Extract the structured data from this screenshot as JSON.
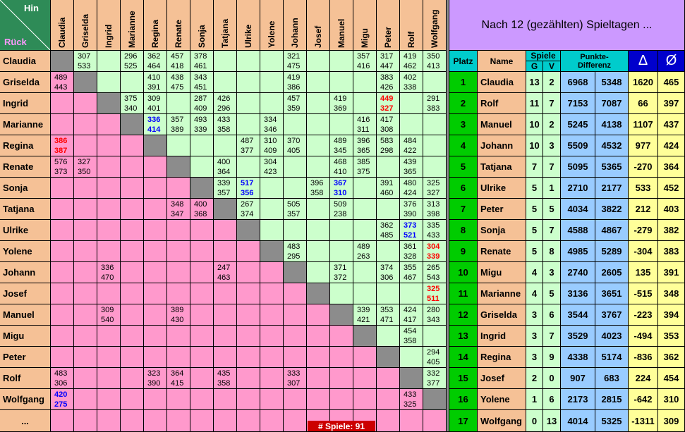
{
  "header": {
    "hin": "Hin",
    "rueck": "Rück",
    "title": "Nach 12 (gezählten) Spieltagen ..."
  },
  "players": [
    "Claudia",
    "Griselda",
    "Ingrid",
    "Marianne",
    "Regina",
    "Renate",
    "Sonja",
    "Tatjana",
    "Ulrike",
    "Yolene",
    "Johann",
    "Josef",
    "Manuel",
    "Migu",
    "Peter",
    "Rolf",
    "Wolfgang"
  ],
  "more_label": "...",
  "games_badge": "# Spiele:   91",
  "matrix": [
    [
      null,
      "307\n533",
      null,
      "296\n525",
      "362\n464",
      "457\n418",
      "378\n461",
      null,
      null,
      null,
      "321\n475",
      null,
      null,
      "357\n416",
      "317\n447",
      "419\n462",
      "350\n413"
    ],
    [
      "489\n443",
      null,
      null,
      null,
      "410\n391",
      "438\n475",
      "343\n451",
      null,
      null,
      null,
      "419\n386",
      null,
      null,
      null,
      "383\n426",
      "402\n338",
      null
    ],
    [
      null,
      null,
      null,
      "375\n340",
      "309\n401",
      null,
      "287\n409",
      "426\n296",
      null,
      null,
      "457\n359",
      null,
      "419\n369",
      null,
      "449\n327",
      null,
      "291\n383"
    ],
    [
      null,
      null,
      null,
      null,
      "336\n414",
      "357\n389",
      "493\n339",
      "433\n358",
      null,
      "334\n346",
      null,
      null,
      null,
      "416\n311",
      "417\n308",
      null,
      null
    ],
    [
      "386\n387",
      null,
      null,
      null,
      null,
      null,
      null,
      null,
      "487\n377",
      "310\n409",
      "370\n405",
      null,
      "489\n345",
      "396\n365",
      "583\n298",
      "484\n422",
      null
    ],
    [
      "576\n373",
      "327\n350",
      null,
      null,
      null,
      null,
      null,
      "400\n364",
      null,
      "304\n423",
      null,
      null,
      "468\n410",
      "385\n375",
      null,
      "439\n365",
      null
    ],
    [
      null,
      null,
      null,
      null,
      null,
      null,
      null,
      "339\n357",
      "517\n356",
      null,
      null,
      "396\n358",
      "367\n310",
      null,
      "391\n460",
      "480\n424",
      "325\n327"
    ],
    [
      null,
      null,
      null,
      null,
      null,
      "348\n347",
      "400\n368",
      null,
      "267\n374",
      null,
      "505\n357",
      null,
      "509\n238",
      null,
      null,
      "376\n390",
      "313\n398"
    ],
    [
      null,
      null,
      null,
      null,
      null,
      null,
      null,
      null,
      null,
      null,
      null,
      null,
      null,
      null,
      "362\n485",
      "373\n521",
      "335\n433"
    ],
    [
      null,
      null,
      null,
      null,
      null,
      null,
      null,
      null,
      null,
      null,
      "483\n295",
      null,
      null,
      "489\n263",
      null,
      "361\n328",
      "304\n339"
    ],
    [
      null,
      null,
      "336\n470",
      null,
      null,
      null,
      null,
      "247\n463",
      null,
      null,
      null,
      null,
      "371\n372",
      null,
      "374\n306",
      "355\n467",
      "265\n543"
    ],
    [
      null,
      null,
      null,
      null,
      null,
      null,
      null,
      null,
      null,
      null,
      null,
      null,
      null,
      null,
      null,
      null,
      "325\n511"
    ],
    [
      null,
      null,
      "309\n540",
      null,
      null,
      "389\n430",
      null,
      null,
      null,
      null,
      null,
      null,
      null,
      "339\n421",
      "353\n471",
      "424\n417",
      "280\n343"
    ],
    [
      null,
      null,
      null,
      null,
      null,
      null,
      null,
      null,
      null,
      null,
      null,
      null,
      null,
      null,
      null,
      "454\n358",
      null
    ],
    [
      null,
      null,
      null,
      null,
      null,
      null,
      null,
      null,
      null,
      null,
      null,
      null,
      null,
      null,
      null,
      null,
      "294\n405"
    ],
    [
      "483\n306",
      null,
      null,
      null,
      "323\n390",
      "364\n415",
      null,
      "435\n358",
      null,
      null,
      "333\n307",
      null,
      null,
      null,
      null,
      null,
      "332\n377"
    ],
    [
      "420\n275",
      null,
      null,
      null,
      null,
      null,
      null,
      null,
      null,
      null,
      null,
      null,
      null,
      null,
      null,
      "433\n325",
      null
    ]
  ],
  "highlight_colors": {
    "red": "#ff0000",
    "blue": "#0000ff"
  },
  "highlights": {
    "2-14": "red",
    "3-4": "blue",
    "4-0": "red",
    "6-8": "blue",
    "6-12": "blue",
    "8-15": "blue",
    "9-16": "red",
    "11-16": "red",
    "16-0": "blue"
  },
  "standings_header": {
    "platz": "Platz",
    "name": "Name",
    "spiele": "Spiele",
    "g": "G",
    "v": "V",
    "punkte": "Punkte-\nDifferenz",
    "delta": "Δ",
    "avg": "Ø"
  },
  "standings": [
    {
      "platz": "1",
      "name": "Claudia",
      "g": "13",
      "v": "2",
      "p1": "6968",
      "p2": "5348",
      "delta": "1620",
      "avg": "465"
    },
    {
      "platz": "2",
      "name": "Rolf",
      "g": "11",
      "v": "7",
      "p1": "7153",
      "p2": "7087",
      "delta": "66",
      "avg": "397"
    },
    {
      "platz": "3",
      "name": "Manuel",
      "g": "10",
      "v": "2",
      "p1": "5245",
      "p2": "4138",
      "delta": "1107",
      "avg": "437"
    },
    {
      "platz": "4",
      "name": "Johann",
      "g": "10",
      "v": "3",
      "p1": "5509",
      "p2": "4532",
      "delta": "977",
      "avg": "424"
    },
    {
      "platz": "5",
      "name": "Tatjana",
      "g": "7",
      "v": "7",
      "p1": "5095",
      "p2": "5365",
      "delta": "-270",
      "avg": "364"
    },
    {
      "platz": "6",
      "name": "Ulrike",
      "g": "5",
      "v": "1",
      "p1": "2710",
      "p2": "2177",
      "delta": "533",
      "avg": "452"
    },
    {
      "platz": "7",
      "name": "Peter",
      "g": "5",
      "v": "5",
      "p1": "4034",
      "p2": "3822",
      "delta": "212",
      "avg": "403"
    },
    {
      "platz": "8",
      "name": "Sonja",
      "g": "5",
      "v": "7",
      "p1": "4588",
      "p2": "4867",
      "delta": "-279",
      "avg": "382"
    },
    {
      "platz": "9",
      "name": "Renate",
      "g": "5",
      "v": "8",
      "p1": "4985",
      "p2": "5289",
      "delta": "-304",
      "avg": "383"
    },
    {
      "platz": "10",
      "name": "Migu",
      "g": "4",
      "v": "3",
      "p1": "2740",
      "p2": "2605",
      "delta": "135",
      "avg": "391"
    },
    {
      "platz": "11",
      "name": "Marianne",
      "g": "4",
      "v": "5",
      "p1": "3136",
      "p2": "3651",
      "delta": "-515",
      "avg": "348"
    },
    {
      "platz": "12",
      "name": "Griselda",
      "g": "3",
      "v": "6",
      "p1": "3544",
      "p2": "3767",
      "delta": "-223",
      "avg": "394"
    },
    {
      "platz": "13",
      "name": "Ingrid",
      "g": "3",
      "v": "7",
      "p1": "3529",
      "p2": "4023",
      "delta": "-494",
      "avg": "353"
    },
    {
      "platz": "14",
      "name": "Regina",
      "g": "3",
      "v": "9",
      "p1": "4338",
      "p2": "5174",
      "delta": "-836",
      "avg": "362"
    },
    {
      "platz": "15",
      "name": "Josef",
      "g": "2",
      "v": "0",
      "p1": "907",
      "p2": "683",
      "delta": "224",
      "avg": "454"
    },
    {
      "platz": "16",
      "name": "Yolene",
      "g": "1",
      "v": "6",
      "p1": "2173",
      "p2": "2815",
      "delta": "-642",
      "avg": "310"
    },
    {
      "platz": "17",
      "name": "Wolfgang",
      "g": "0",
      "v": "13",
      "p1": "4014",
      "p2": "5325",
      "delta": "-1311",
      "avg": "309"
    }
  ]
}
